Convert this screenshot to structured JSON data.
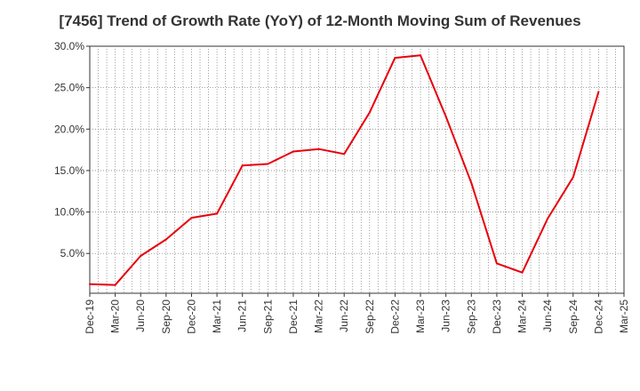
{
  "chart_data": {
    "type": "line",
    "title": "[7456]  Trend of Growth Rate (YoY) of 12-Month Moving Sum of Revenues",
    "xlabel": "",
    "ylabel": "",
    "x_tick_labels": [
      "Dec-19",
      "Mar-20",
      "Jun-20",
      "Sep-20",
      "Dec-20",
      "Mar-21",
      "Jun-21",
      "Sep-21",
      "Dec-21",
      "Mar-22",
      "Jun-22",
      "Sep-22",
      "Dec-22",
      "Mar-23",
      "Jun-23",
      "Sep-23",
      "Dec-23",
      "Mar-24",
      "Jun-24",
      "Sep-24",
      "Dec-24",
      "Mar-25"
    ],
    "y_tick_labels": [
      "5.0%",
      "10.0%",
      "15.0%",
      "20.0%",
      "25.0%",
      "30.0%"
    ],
    "y_ticks": [
      5,
      10,
      15,
      20,
      25,
      30
    ],
    "ylim": [
      0.2,
      30
    ],
    "grid": true,
    "series": [
      {
        "color": "#e8000b",
        "x": [
          "Dec-19",
          "Mar-20",
          "Jun-20",
          "Sep-20",
          "Dec-20",
          "Mar-21",
          "Jun-21",
          "Sep-21",
          "Dec-21",
          "Mar-22",
          "Jun-22",
          "Sep-22",
          "Dec-22",
          "Mar-23",
          "Jun-23",
          "Sep-23",
          "Dec-23",
          "Mar-24",
          "Jun-24",
          "Sep-24",
          "Dec-24"
        ],
        "values": [
          1.3,
          1.2,
          4.7,
          6.7,
          9.3,
          9.8,
          15.6,
          15.8,
          17.3,
          17.6,
          17.0,
          22.0,
          28.6,
          28.9,
          21.5,
          13.5,
          3.8,
          2.7,
          9.2,
          14.2,
          24.5
        ]
      }
    ]
  }
}
